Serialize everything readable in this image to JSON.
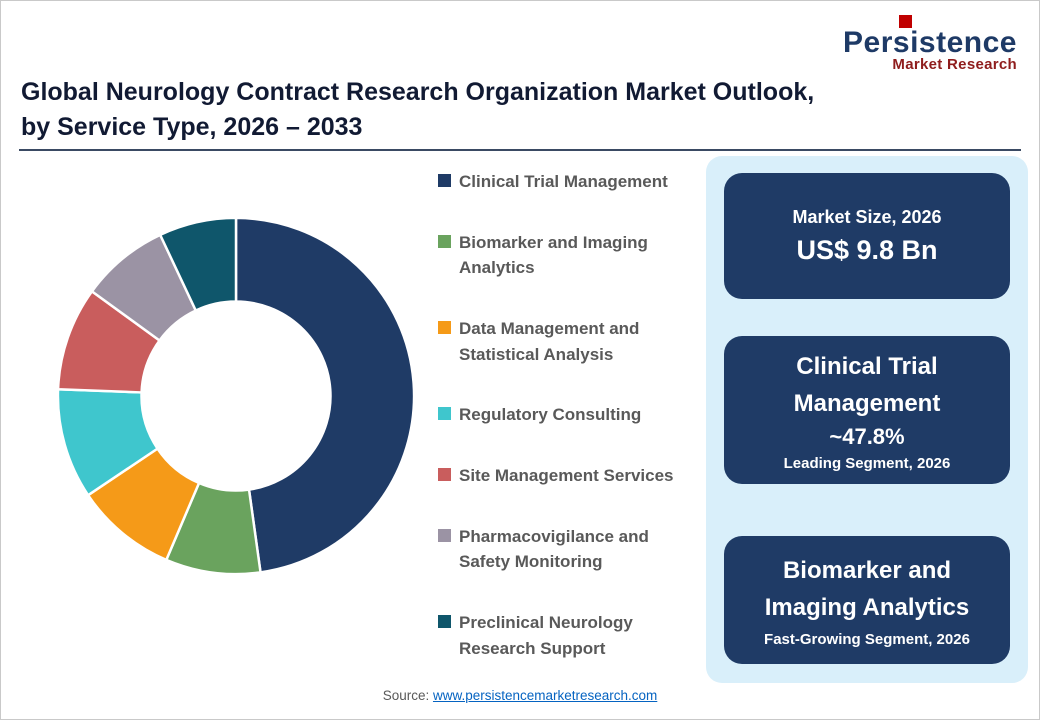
{
  "header": {
    "title_line1": "Global Neurology Contract Research Organization Market Outlook,",
    "title_line2": "by Service Type, 2026 – 2033",
    "logo": {
      "name": "Persistence",
      "sub": "Market Research",
      "accent_color": "#c00000"
    }
  },
  "chart_data": {
    "type": "pie",
    "donut": true,
    "title": "Global Neurology Contract Research Organization Market Outlook, by Service Type, 2026 – 2033",
    "start_angle": 0,
    "inner_radius_ratio": 0.53,
    "legend_position": "right",
    "segments": [
      {
        "label": "Clinical Trial Management",
        "value": 47.8,
        "color": "#1f3b66"
      },
      {
        "label": "Biomarker and Imaging Analytics",
        "value": 8.6,
        "color": "#6aa35e"
      },
      {
        "label": "Data Management and Statistical Analysis",
        "value": 9.2,
        "color": "#f59a18"
      },
      {
        "label": "Regulatory Consulting",
        "value": 10.0,
        "color": "#3fc6cd"
      },
      {
        "label": "Site Management Services",
        "value": 9.4,
        "color": "#c95d5d"
      },
      {
        "label": "Pharmacovigilance and Safety Monitoring",
        "value": 8.0,
        "color": "#9b93a4"
      },
      {
        "label": "Preclinical Neurology Research Support",
        "value": 7.0,
        "color": "#0f566b"
      }
    ]
  },
  "panel": {
    "box_market": {
      "title": "Market Size, 2026",
      "value": "US$ 9.8 Bn"
    },
    "box_leading": {
      "title": "Clinical Trial Management",
      "value": "~47.8%",
      "caption": "Leading Segment, 2026"
    },
    "box_fast": {
      "title": "Biomarker and Imaging Analytics",
      "caption": "Fast-Growing Segment, 2026"
    }
  },
  "footer": {
    "source_label": "Source: ",
    "source_link": "www.persistencemarketresearch.com"
  }
}
